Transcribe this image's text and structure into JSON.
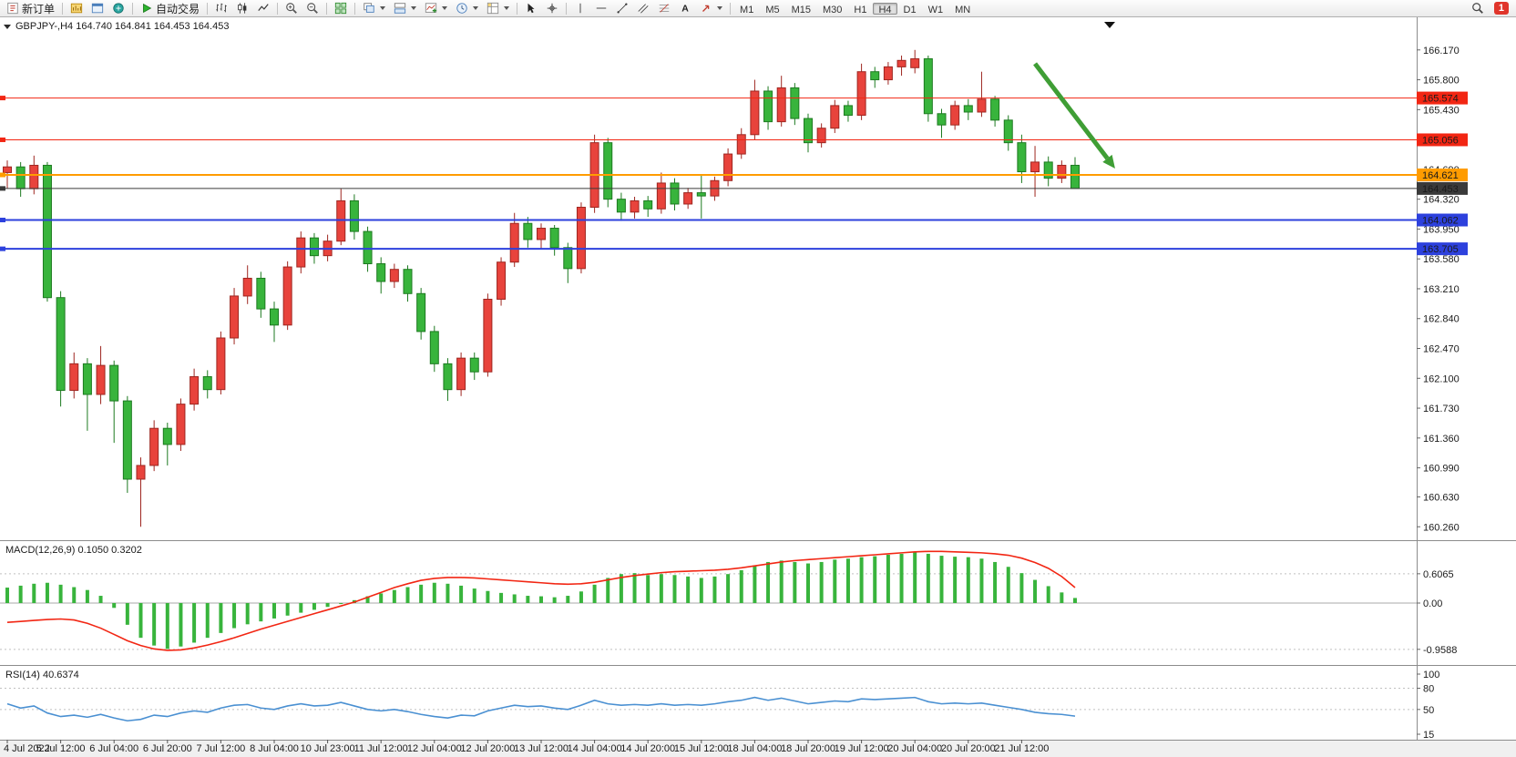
{
  "toolbar": {
    "new_order_label": "新订单",
    "autotrading_label": "自动交易",
    "timeframes": [
      "M1",
      "M5",
      "M15",
      "M30",
      "H1",
      "H4",
      "D1",
      "W1",
      "MN"
    ],
    "active_timeframe": "H4",
    "notification_badge": "1"
  },
  "chart": {
    "symbol_title": "GBPJPY-,H4 164.740 164.841 164.453 164.453"
  },
  "chart_data": {
    "type": "candlestick",
    "symbol": "GBPJPY-",
    "period": "H4",
    "current_bar": {
      "open": 164.74,
      "high": 164.841,
      "low": 164.453,
      "close": 164.453
    },
    "colors": {
      "bull": "#e8433c",
      "bull_border": "#9e2620",
      "bear": "#38b43c",
      "bear_border": "#1d7a20",
      "macd_histogram": "#38b43c",
      "macd_signal": "#f22613",
      "rsi_line": "#4a90d2",
      "arrow": "#3f9e35",
      "level_red": "#f22613",
      "level_orange": "#ff9c00",
      "level_blue": "#2d41dd",
      "level_black": "#3a3a3a"
    },
    "price_axis_ticks": [
      "166.170",
      "165.800",
      "165.430",
      "164.690",
      "164.320",
      "163.950",
      "163.580",
      "163.210",
      "162.840",
      "162.470",
      "162.100",
      "161.730",
      "161.360",
      "160.990",
      "160.630",
      "160.260"
    ],
    "levels": [
      {
        "label": "165.574",
        "price": 165.574,
        "color": "#f22613",
        "line_width": 1
      },
      {
        "label": "165.056",
        "price": 165.056,
        "color": "#f22613",
        "line_width": 1
      },
      {
        "label": "164.621",
        "price": 164.621,
        "color": "#ff9c00",
        "line_width": 2
      },
      {
        "label": "164.453",
        "price": 164.453,
        "color": "#3a3a3a",
        "line_width": 1
      },
      {
        "label": "164.062",
        "price": 164.062,
        "color": "#2d41dd",
        "line_width": 2
      },
      {
        "label": "163.705",
        "price": 163.705,
        "color": "#2d41dd",
        "line_width": 2
      }
    ],
    "time_labels": [
      "4 Jul 2022",
      "5 Jul 12:00",
      "6 Jul 04:00",
      "6 Jul 20:00",
      "7 Jul 12:00",
      "8 Jul 04:00",
      "10 Jul 23:00",
      "11 Jul 12:00",
      "12 Jul 04:00",
      "12 Jul 20:00",
      "13 Jul 12:00",
      "14 Jul 04:00",
      "14 Jul 20:00",
      "15 Jul 12:00",
      "18 Jul 04:00",
      "18 Jul 20:00",
      "19 Jul 12:00",
      "20 Jul 04:00",
      "20 Jul 20:00",
      "21 Jul 12:00"
    ],
    "candles": [
      [
        164.65,
        164.8,
        164.45,
        164.72
      ],
      [
        164.72,
        164.78,
        164.35,
        164.45
      ],
      [
        164.45,
        164.86,
        164.38,
        164.74
      ],
      [
        164.74,
        164.78,
        163.05,
        163.1
      ],
      [
        163.1,
        163.18,
        161.75,
        161.95
      ],
      [
        161.95,
        162.42,
        161.85,
        162.28
      ],
      [
        162.28,
        162.35,
        161.45,
        161.9
      ],
      [
        161.9,
        162.5,
        161.78,
        162.26
      ],
      [
        162.26,
        162.32,
        161.3,
        161.82
      ],
      [
        161.82,
        161.88,
        160.68,
        160.85
      ],
      [
        160.85,
        161.12,
        160.26,
        161.02
      ],
      [
        161.02,
        161.58,
        160.95,
        161.48
      ],
      [
        161.48,
        161.55,
        161.02,
        161.28
      ],
      [
        161.28,
        161.85,
        161.2,
        161.78
      ],
      [
        161.78,
        162.22,
        161.7,
        162.12
      ],
      [
        162.12,
        162.2,
        161.85,
        161.96
      ],
      [
        161.96,
        162.68,
        161.9,
        162.6
      ],
      [
        162.6,
        163.22,
        162.52,
        163.12
      ],
      [
        163.12,
        163.5,
        163.02,
        163.34
      ],
      [
        163.34,
        163.42,
        162.85,
        162.96
      ],
      [
        162.96,
        163.05,
        162.55,
        162.76
      ],
      [
        162.76,
        163.55,
        162.7,
        163.48
      ],
      [
        163.48,
        163.92,
        163.4,
        163.84
      ],
      [
        163.84,
        163.9,
        163.52,
        163.62
      ],
      [
        163.62,
        163.88,
        163.55,
        163.8
      ],
      [
        163.8,
        164.45,
        163.75,
        164.3
      ],
      [
        164.3,
        164.38,
        163.82,
        163.92
      ],
      [
        163.92,
        163.98,
        163.42,
        163.52
      ],
      [
        163.52,
        163.6,
        163.15,
        163.3
      ],
      [
        163.3,
        163.52,
        163.22,
        163.45
      ],
      [
        163.45,
        163.5,
        163.05,
        163.15
      ],
      [
        163.15,
        163.22,
        162.58,
        162.68
      ],
      [
        162.68,
        162.75,
        162.18,
        162.28
      ],
      [
        162.28,
        162.35,
        161.82,
        161.96
      ],
      [
        161.96,
        162.42,
        161.88,
        162.35
      ],
      [
        162.35,
        162.42,
        162.08,
        162.18
      ],
      [
        162.18,
        163.15,
        162.12,
        163.08
      ],
      [
        163.08,
        163.6,
        163.0,
        163.54
      ],
      [
        163.54,
        164.15,
        163.48,
        164.02
      ],
      [
        164.02,
        164.1,
        163.72,
        163.82
      ],
      [
        163.82,
        164.02,
        163.7,
        163.96
      ],
      [
        163.96,
        164.0,
        163.62,
        163.72
      ],
      [
        163.72,
        163.78,
        163.28,
        163.46
      ],
      [
        163.46,
        164.28,
        163.4,
        164.22
      ],
      [
        164.22,
        165.12,
        164.15,
        165.02
      ],
      [
        165.02,
        165.08,
        164.22,
        164.32
      ],
      [
        164.32,
        164.4,
        164.05,
        164.16
      ],
      [
        164.16,
        164.35,
        164.08,
        164.3
      ],
      [
        164.3,
        164.36,
        164.1,
        164.2
      ],
      [
        164.2,
        164.65,
        164.14,
        164.52
      ],
      [
        164.52,
        164.58,
        164.18,
        164.26
      ],
      [
        164.26,
        164.46,
        164.2,
        164.4
      ],
      [
        164.4,
        164.62,
        164.08,
        164.36
      ],
      [
        164.36,
        164.6,
        164.3,
        164.55
      ],
      [
        164.55,
        164.95,
        164.48,
        164.88
      ],
      [
        164.88,
        165.2,
        164.82,
        165.12
      ],
      [
        165.12,
        165.8,
        165.05,
        165.66
      ],
      [
        165.66,
        165.72,
        165.18,
        165.28
      ],
      [
        165.28,
        165.85,
        165.22,
        165.7
      ],
      [
        165.7,
        165.76,
        165.24,
        165.32
      ],
      [
        165.32,
        165.38,
        164.9,
        165.02
      ],
      [
        165.02,
        165.26,
        164.96,
        165.2
      ],
      [
        165.2,
        165.55,
        165.14,
        165.48
      ],
      [
        165.48,
        165.54,
        165.28,
        165.36
      ],
      [
        165.36,
        166.0,
        165.3,
        165.9
      ],
      [
        165.9,
        165.96,
        165.7,
        165.8
      ],
      [
        165.8,
        166.02,
        165.74,
        165.96
      ],
      [
        165.96,
        166.1,
        165.85,
        166.04
      ],
      [
        165.95,
        166.17,
        165.88,
        166.06
      ],
      [
        166.06,
        166.1,
        165.28,
        165.38
      ],
      [
        165.38,
        165.44,
        165.08,
        165.24
      ],
      [
        165.24,
        165.54,
        165.18,
        165.48
      ],
      [
        165.48,
        165.56,
        165.3,
        165.4
      ],
      [
        165.4,
        165.9,
        165.34,
        165.56
      ],
      [
        165.56,
        165.6,
        165.22,
        165.3
      ],
      [
        165.3,
        165.36,
        164.92,
        165.02
      ],
      [
        165.02,
        165.12,
        164.52,
        164.66
      ],
      [
        164.66,
        164.98,
        164.35,
        164.78
      ],
      [
        164.78,
        164.85,
        164.48,
        164.58
      ],
      [
        164.58,
        164.8,
        164.52,
        164.74
      ],
      [
        164.74,
        164.841,
        164.453,
        164.453
      ]
    ],
    "annotations": [
      {
        "type": "arrow",
        "color": "#3f9e35",
        "from": {
          "bar": 77,
          "price": 166.0
        },
        "to": {
          "bar": 83,
          "price": 164.7
        }
      }
    ],
    "indicators": {
      "macd": {
        "label": "MACD(12,26,9) 0.1050 0.3202",
        "axis_labels": [
          "0.6065",
          "0.00",
          "-0.9588"
        ],
        "histogram": [
          0.32,
          0.36,
          0.4,
          0.42,
          0.38,
          0.33,
          0.27,
          0.15,
          -0.1,
          -0.45,
          -0.72,
          -0.88,
          -0.95,
          -0.9,
          -0.82,
          -0.72,
          -0.62,
          -0.52,
          -0.44,
          -0.38,
          -0.32,
          -0.26,
          -0.2,
          -0.14,
          -0.08,
          -0.02,
          0.06,
          0.14,
          0.2,
          0.27,
          0.33,
          0.38,
          0.42,
          0.4,
          0.36,
          0.3,
          0.25,
          0.21,
          0.18,
          0.15,
          0.14,
          0.12,
          0.15,
          0.24,
          0.38,
          0.52,
          0.6,
          0.62,
          0.58,
          0.6,
          0.58,
          0.55,
          0.52,
          0.55,
          0.6,
          0.68,
          0.78,
          0.85,
          0.88,
          0.85,
          0.82,
          0.85,
          0.9,
          0.92,
          0.95,
          0.97,
          1.0,
          1.02,
          1.05,
          1.02,
          0.98,
          0.96,
          0.95,
          0.92,
          0.85,
          0.75,
          0.62,
          0.48,
          0.35,
          0.22,
          0.105
        ],
        "signal": [
          -0.4,
          -0.38,
          -0.36,
          -0.34,
          -0.33,
          -0.35,
          -0.42,
          -0.52,
          -0.65,
          -0.78,
          -0.88,
          -0.95,
          -0.98,
          -0.97,
          -0.93,
          -0.87,
          -0.8,
          -0.72,
          -0.63,
          -0.54,
          -0.46,
          -0.38,
          -0.3,
          -0.22,
          -0.14,
          -0.06,
          0.02,
          0.12,
          0.22,
          0.32,
          0.4,
          0.47,
          0.51,
          0.53,
          0.53,
          0.52,
          0.5,
          0.48,
          0.46,
          0.44,
          0.42,
          0.4,
          0.39,
          0.4,
          0.43,
          0.48,
          0.53,
          0.57,
          0.6,
          0.63,
          0.65,
          0.66,
          0.67,
          0.68,
          0.7,
          0.73,
          0.77,
          0.81,
          0.85,
          0.88,
          0.9,
          0.92,
          0.94,
          0.96,
          0.98,
          1.0,
          1.02,
          1.04,
          1.06,
          1.07,
          1.07,
          1.06,
          1.05,
          1.04,
          1.02,
          0.99,
          0.93,
          0.84,
          0.72,
          0.55,
          0.32
        ]
      },
      "rsi": {
        "label": "RSI(14) 40.6374",
        "axis_labels": [
          "100",
          "80",
          "50",
          "15"
        ],
        "values": [
          58,
          52,
          55,
          45,
          40,
          42,
          39,
          43,
          38,
          34,
          36,
          42,
          40,
          45,
          48,
          46,
          52,
          56,
          57,
          52,
          50,
          55,
          58,
          55,
          56,
          60,
          55,
          50,
          48,
          50,
          47,
          43,
          40,
          38,
          42,
          41,
          48,
          52,
          56,
          54,
          55,
          52,
          50,
          56,
          63,
          58,
          56,
          57,
          56,
          58,
          56,
          57,
          56,
          58,
          61,
          63,
          67,
          63,
          66,
          62,
          58,
          60,
          62,
          61,
          65,
          64,
          65,
          66,
          67,
          61,
          58,
          59,
          58,
          59,
          56,
          53,
          50,
          46,
          44,
          43,
          40.6
        ]
      }
    }
  }
}
